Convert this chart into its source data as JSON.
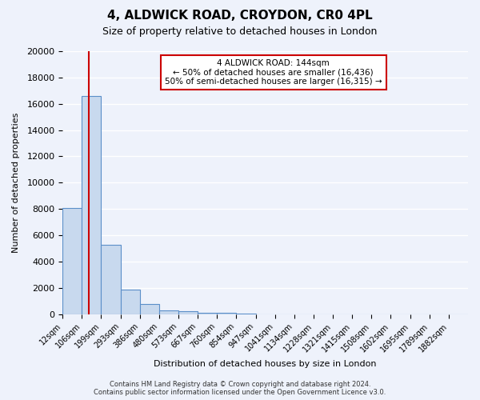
{
  "title": "4, ALDWICK ROAD, CROYDON, CR0 4PL",
  "subtitle": "Size of property relative to detached houses in London",
  "xlabel": "Distribution of detached houses by size in London",
  "ylabel": "Number of detached properties",
  "bin_labels": [
    "12sqm",
    "106sqm",
    "199sqm",
    "293sqm",
    "386sqm",
    "480sqm",
    "573sqm",
    "667sqm",
    "760sqm",
    "854sqm",
    "947sqm",
    "1041sqm",
    "1134sqm",
    "1228sqm",
    "1321sqm",
    "1415sqm",
    "1508sqm",
    "1602sqm",
    "1695sqm",
    "1789sqm",
    "1882sqm"
  ],
  "bin_values": [
    8100,
    16600,
    5300,
    1850,
    800,
    300,
    200,
    100,
    75,
    50,
    0,
    0,
    0,
    0,
    0,
    0,
    0,
    0,
    0,
    0,
    0
  ],
  "bar_color": "#c8d9ee",
  "bar_edge_color": "#5b8fc9",
  "background_color": "#eef2fb",
  "grid_color": "#ffffff",
  "vline_x": 1.38,
  "vline_color": "#cc0000",
  "annotation_title": "4 ALDWICK ROAD: 144sqm",
  "annotation_line1": "← 50% of detached houses are smaller (16,436)",
  "annotation_line2": "50% of semi-detached houses are larger (16,315) →",
  "annotation_box_color": "#ffffff",
  "annotation_box_edge_color": "#cc0000",
  "ylim": [
    0,
    20000
  ],
  "yticks": [
    0,
    2000,
    4000,
    6000,
    8000,
    10000,
    12000,
    14000,
    16000,
    18000,
    20000
  ],
  "footer_line1": "Contains HM Land Registry data © Crown copyright and database right 2024.",
  "footer_line2": "Contains public sector information licensed under the Open Government Licence v3.0."
}
